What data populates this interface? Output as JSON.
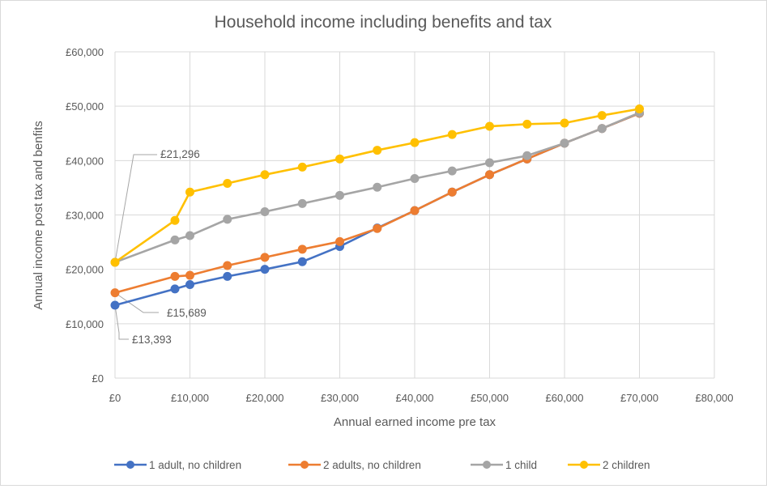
{
  "chart_data": {
    "type": "line",
    "title": "Household income including benefits and tax",
    "xlabel": "Annual earned income pre tax",
    "ylabel": "Annual income post tax and benfits",
    "xlim": [
      0,
      80000
    ],
    "ylim": [
      0,
      60000
    ],
    "x_ticks": [
      0,
      10000,
      20000,
      30000,
      40000,
      50000,
      60000,
      70000,
      80000
    ],
    "y_ticks": [
      0,
      10000,
      20000,
      30000,
      40000,
      50000,
      60000
    ],
    "x_tick_labels": [
      "£0",
      "£10,000",
      "£20,000",
      "£30,000",
      "£40,000",
      "£50,000",
      "£60,000",
      "£70,000",
      "£80,000"
    ],
    "y_tick_labels": [
      "£0",
      "£10,000",
      "£20,000",
      "£30,000",
      "£40,000",
      "£50,000",
      "£60,000"
    ],
    "grid": true,
    "legend_position": "bottom",
    "series": [
      {
        "name": "1 adult, no children",
        "color": "#4472C4",
        "points": [
          [
            0,
            13393
          ],
          [
            8000,
            16400
          ],
          [
            10000,
            17200
          ],
          [
            15000,
            18700
          ],
          [
            20000,
            20000
          ],
          [
            25000,
            21400
          ],
          [
            30000,
            24200
          ],
          [
            35000,
            27600
          ],
          [
            40000,
            30800
          ],
          [
            45000,
            34200
          ],
          [
            50000,
            37400
          ],
          [
            55000,
            40300
          ],
          [
            60000,
            43200
          ],
          [
            65000,
            45900
          ],
          [
            70000,
            48700
          ]
        ]
      },
      {
        "name": "2 adults, no children",
        "color": "#ED7D31",
        "points": [
          [
            0,
            15689
          ],
          [
            8000,
            18700
          ],
          [
            10000,
            18900
          ],
          [
            15000,
            20700
          ],
          [
            20000,
            22200
          ],
          [
            25000,
            23700
          ],
          [
            30000,
            25100
          ],
          [
            35000,
            27500
          ],
          [
            40000,
            30800
          ],
          [
            45000,
            34200
          ],
          [
            50000,
            37400
          ],
          [
            55000,
            40300
          ],
          [
            60000,
            43200
          ],
          [
            65000,
            45900
          ],
          [
            70000,
            48700
          ]
        ]
      },
      {
        "name": "1 child",
        "color": "#A5A5A5",
        "points": [
          [
            0,
            21296
          ],
          [
            8000,
            25400
          ],
          [
            10000,
            26200
          ],
          [
            15000,
            29200
          ],
          [
            20000,
            30600
          ],
          [
            25000,
            32100
          ],
          [
            30000,
            33600
          ],
          [
            35000,
            35100
          ],
          [
            40000,
            36700
          ],
          [
            45000,
            38100
          ],
          [
            50000,
            39600
          ],
          [
            55000,
            40900
          ],
          [
            60000,
            43200
          ],
          [
            65000,
            45900
          ],
          [
            70000,
            48800
          ]
        ]
      },
      {
        "name": "2 children",
        "color": "#FFC000",
        "points": [
          [
            0,
            21296
          ],
          [
            8000,
            29000
          ],
          [
            10000,
            34200
          ],
          [
            15000,
            35800
          ],
          [
            20000,
            37400
          ],
          [
            25000,
            38800
          ],
          [
            30000,
            40300
          ],
          [
            35000,
            41900
          ],
          [
            40000,
            43300
          ],
          [
            45000,
            44800
          ],
          [
            50000,
            46300
          ],
          [
            55000,
            46700
          ],
          [
            60000,
            46900
          ],
          [
            65000,
            48300
          ],
          [
            70000,
            49500
          ]
        ]
      }
    ],
    "annotations": [
      {
        "text": "£21,296",
        "x": 0,
        "y": 21296
      },
      {
        "text": "£15,689",
        "x": 0,
        "y": 15689
      },
      {
        "text": "£13,393",
        "x": 0,
        "y": 13393
      }
    ]
  }
}
